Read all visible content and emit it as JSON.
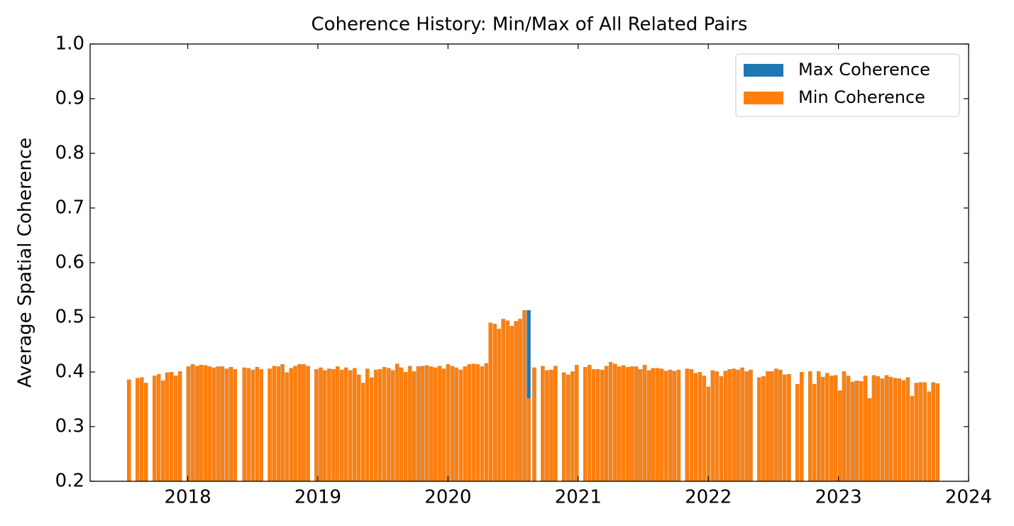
{
  "chart_data": {
    "type": "bar",
    "title": "Coherence History: Min/Max of All Related Pairs",
    "y_label": "Average Spatial Coherence",
    "x": [
      2017.549,
      2017.614,
      2017.647,
      2017.679,
      2017.745,
      2017.777,
      2017.81,
      2017.842,
      2017.875,
      2017.908,
      2017.94,
      2018.005,
      2018.038,
      2018.071,
      2018.103,
      2018.136,
      2018.168,
      2018.201,
      2018.234,
      2018.266,
      2018.299,
      2018.332,
      2018.364,
      2018.435,
      2018.467,
      2018.5,
      2018.533,
      2018.565,
      2018.63,
      2018.663,
      2018.696,
      2018.728,
      2018.761,
      2018.794,
      2018.826,
      2018.859,
      2018.891,
      2018.924,
      2018.989,
      2019.022,
      2019.054,
      2019.087,
      2019.12,
      2019.152,
      2019.185,
      2019.217,
      2019.25,
      2019.283,
      2019.315,
      2019.348,
      2019.38,
      2019.413,
      2019.446,
      2019.478,
      2019.511,
      2019.544,
      2019.576,
      2019.609,
      2019.641,
      2019.674,
      2019.707,
      2019.739,
      2019.772,
      2019.804,
      2019.837,
      2019.87,
      2019.902,
      2019.935,
      2019.967,
      2020.0,
      2020.033,
      2020.065,
      2020.098,
      2020.131,
      2020.163,
      2020.196,
      2020.228,
      2020.261,
      2020.294,
      2020.326,
      2020.359,
      2020.391,
      2020.424,
      2020.457,
      2020.489,
      2020.522,
      2020.554,
      2020.587,
      2020.62,
      2020.663,
      2020.728,
      2020.761,
      2020.794,
      2020.826,
      2020.891,
      2020.924,
      2020.957,
      2020.989,
      2021.054,
      2021.087,
      2021.12,
      2021.152,
      2021.185,
      2021.217,
      2021.25,
      2021.283,
      2021.315,
      2021.348,
      2021.381,
      2021.413,
      2021.446,
      2021.478,
      2021.511,
      2021.544,
      2021.576,
      2021.609,
      2021.641,
      2021.674,
      2021.707,
      2021.739,
      2021.772,
      2021.837,
      2021.87,
      2021.902,
      2021.935,
      2021.967,
      2022.0,
      2022.033,
      2022.065,
      2022.098,
      2022.131,
      2022.163,
      2022.196,
      2022.228,
      2022.261,
      2022.294,
      2022.326,
      2022.391,
      2022.424,
      2022.457,
      2022.489,
      2022.522,
      2022.554,
      2022.587,
      2022.62,
      2022.685,
      2022.717,
      2022.783,
      2022.815,
      2022.848,
      2022.88,
      2022.913,
      2022.946,
      2022.978,
      2023.011,
      2023.043,
      2023.076,
      2023.109,
      2023.141,
      2023.174,
      2023.207,
      2023.239,
      2023.272,
      2023.304,
      2023.337,
      2023.37,
      2023.402,
      2023.435,
      2023.467,
      2023.5,
      2023.533,
      2023.565,
      2023.598,
      2023.63,
      2023.663,
      2023.696,
      2023.728,
      2023.761
    ],
    "series": [
      {
        "name": "Max Coherence",
        "color": "#1f77b4",
        "values": [
          0.386,
          0.389,
          0.39,
          0.38,
          0.393,
          0.396,
          0.384,
          0.399,
          0.4,
          0.393,
          0.401,
          0.41,
          0.414,
          0.411,
          0.413,
          0.412,
          0.41,
          0.408,
          0.41,
          0.41,
          0.406,
          0.409,
          0.405,
          0.408,
          0.407,
          0.404,
          0.409,
          0.405,
          0.406,
          0.411,
          0.41,
          0.414,
          0.399,
          0.407,
          0.411,
          0.414,
          0.414,
          0.411,
          0.405,
          0.408,
          0.403,
          0.406,
          0.405,
          0.41,
          0.404,
          0.408,
          0.403,
          0.407,
          0.395,
          0.38,
          0.406,
          0.39,
          0.404,
          0.405,
          0.409,
          0.407,
          0.403,
          0.415,
          0.408,
          0.4,
          0.411,
          0.401,
          0.41,
          0.411,
          0.412,
          0.41,
          0.408,
          0.411,
          0.406,
          0.414,
          0.411,
          0.408,
          0.404,
          0.41,
          0.414,
          0.415,
          0.414,
          0.41,
          0.416,
          0.49,
          0.488,
          0.479,
          0.497,
          0.494,
          0.484,
          0.493,
          0.497,
          0.513,
          0.513,
          0.408,
          0.411,
          0.403,
          0.404,
          0.411,
          0.399,
          0.395,
          0.401,
          0.413,
          0.409,
          0.413,
          0.405,
          0.405,
          0.404,
          0.411,
          0.418,
          0.415,
          0.41,
          0.412,
          0.409,
          0.41,
          0.41,
          0.405,
          0.413,
          0.403,
          0.407,
          0.407,
          0.406,
          0.402,
          0.404,
          0.402,
          0.404,
          0.406,
          0.405,
          0.398,
          0.4,
          0.393,
          0.373,
          0.403,
          0.401,
          0.392,
          0.402,
          0.405,
          0.406,
          0.404,
          0.408,
          0.401,
          0.404,
          0.39,
          0.392,
          0.401,
          0.401,
          0.406,
          0.404,
          0.395,
          0.396,
          0.378,
          0.4,
          0.401,
          0.378,
          0.401,
          0.391,
          0.398,
          0.393,
          0.394,
          0.366,
          0.401,
          0.393,
          0.382,
          0.384,
          0.383,
          0.393,
          0.352,
          0.394,
          0.392,
          0.388,
          0.394,
          0.391,
          0.389,
          0.388,
          0.385,
          0.39,
          0.356,
          0.38,
          0.381,
          0.381,
          0.364,
          0.381,
          0.379
        ]
      },
      {
        "name": "Min Coherence",
        "color": "#ff7f0e",
        "values": [
          0.386,
          0.389,
          0.39,
          0.38,
          0.393,
          0.396,
          0.384,
          0.399,
          0.4,
          0.393,
          0.401,
          0.41,
          0.414,
          0.411,
          0.413,
          0.412,
          0.41,
          0.408,
          0.41,
          0.41,
          0.406,
          0.409,
          0.405,
          0.408,
          0.407,
          0.404,
          0.409,
          0.405,
          0.406,
          0.411,
          0.41,
          0.414,
          0.399,
          0.407,
          0.411,
          0.414,
          0.414,
          0.411,
          0.405,
          0.408,
          0.403,
          0.406,
          0.405,
          0.41,
          0.404,
          0.408,
          0.403,
          0.407,
          0.395,
          0.38,
          0.406,
          0.39,
          0.404,
          0.405,
          0.409,
          0.407,
          0.403,
          0.415,
          0.408,
          0.4,
          0.411,
          0.401,
          0.41,
          0.411,
          0.412,
          0.41,
          0.408,
          0.411,
          0.406,
          0.414,
          0.411,
          0.408,
          0.404,
          0.41,
          0.414,
          0.415,
          0.414,
          0.41,
          0.416,
          0.49,
          0.488,
          0.479,
          0.497,
          0.494,
          0.484,
          0.493,
          0.497,
          0.513,
          0.352,
          0.408,
          0.411,
          0.403,
          0.404,
          0.411,
          0.399,
          0.395,
          0.401,
          0.413,
          0.409,
          0.413,
          0.405,
          0.405,
          0.404,
          0.411,
          0.418,
          0.415,
          0.41,
          0.412,
          0.409,
          0.41,
          0.41,
          0.405,
          0.413,
          0.403,
          0.407,
          0.407,
          0.406,
          0.402,
          0.404,
          0.402,
          0.404,
          0.406,
          0.405,
          0.398,
          0.4,
          0.393,
          0.373,
          0.403,
          0.401,
          0.392,
          0.402,
          0.405,
          0.406,
          0.404,
          0.408,
          0.401,
          0.404,
          0.39,
          0.392,
          0.401,
          0.401,
          0.406,
          0.404,
          0.395,
          0.396,
          0.378,
          0.4,
          0.401,
          0.378,
          0.401,
          0.391,
          0.398,
          0.393,
          0.394,
          0.366,
          0.401,
          0.393,
          0.382,
          0.384,
          0.383,
          0.393,
          0.352,
          0.394,
          0.392,
          0.388,
          0.394,
          0.391,
          0.389,
          0.388,
          0.385,
          0.39,
          0.356,
          0.38,
          0.381,
          0.381,
          0.364,
          0.381,
          0.379
        ]
      }
    ],
    "xlim": [
      2017.25,
      2024.0
    ],
    "xticks": [
      2018,
      2019,
      2020,
      2021,
      2022,
      2023,
      2024
    ],
    "ylim": [
      0.2,
      1.0
    ],
    "yticks": [
      0.2,
      0.3,
      0.4,
      0.5,
      0.6,
      0.7,
      0.8,
      0.9,
      {
        "value": 1.0,
        "label": "1.0"
      }
    ],
    "legend": "upper right"
  }
}
